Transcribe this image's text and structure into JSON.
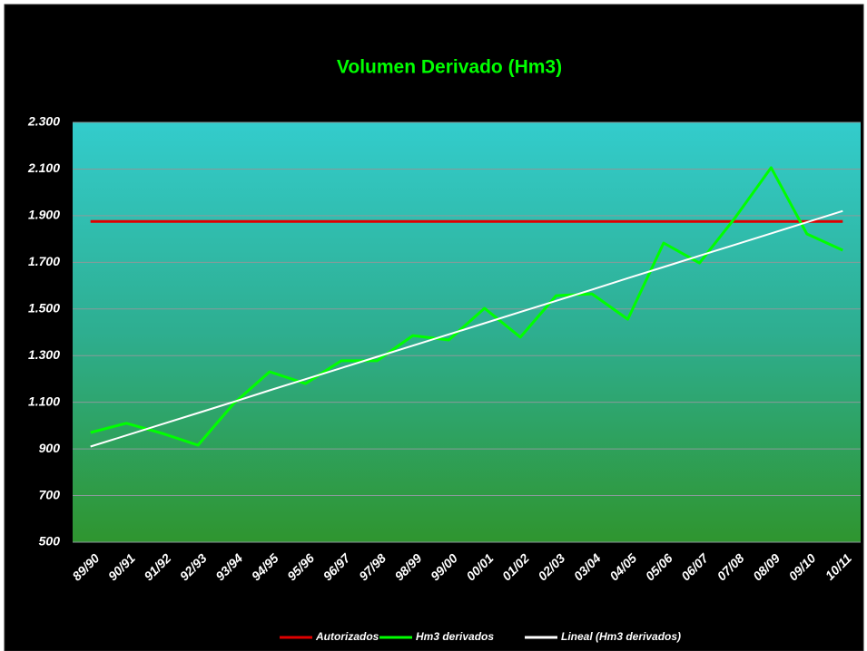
{
  "chart_data": {
    "type": "line",
    "title": "Volumen Derivado  (Hm3)",
    "categories": [
      "89/90",
      "90/91",
      "91/92",
      "92/93",
      "93/94",
      "94/95",
      "95/96",
      "96/97",
      "97/98",
      "98/99",
      "99/00",
      "00/01",
      "01/02",
      "02/03",
      "03/04",
      "04/05",
      "05/06",
      "06/07",
      "07/08",
      "08/09",
      "09/10",
      "10/11"
    ],
    "series": [
      {
        "name": "Autorizados",
        "color": "#e00000",
        "values": [
          1875,
          1875,
          1875,
          1875,
          1875,
          1875,
          1875,
          1875,
          1875,
          1875,
          1875,
          1875,
          1875,
          1875,
          1875,
          1875,
          1875,
          1875,
          1875,
          1875,
          1875,
          1875
        ]
      },
      {
        "name": "Hm3 derivados",
        "color": "#00ff00",
        "values": [
          970,
          1010,
          967,
          916,
          1095,
          1231,
          1180,
          1278,
          1278,
          1386,
          1367,
          1503,
          1379,
          1557,
          1565,
          1456,
          1783,
          1697,
          1892,
          2106,
          1822,
          1752
        ]
      },
      {
        "name": "Lineal (Hm3 derivados)",
        "color": "#ffffff",
        "values": [
          910,
          958,
          1006,
          1054,
          1102,
          1151,
          1199,
          1247,
          1295,
          1343,
          1391,
          1439,
          1487,
          1535,
          1583,
          1632,
          1680,
          1728,
          1776,
          1824,
          1872,
          1920
        ]
      }
    ],
    "ylim": [
      500,
      2300
    ],
    "yticks": [
      {
        "value": 500,
        "label": "500"
      },
      {
        "value": 700,
        "label": "700"
      },
      {
        "value": 900,
        "label": "900"
      },
      {
        "value": 1100,
        "label": "1.100"
      },
      {
        "value": 1300,
        "label": "1.300"
      },
      {
        "value": 1500,
        "label": "1.500"
      },
      {
        "value": 1700,
        "label": "1.700"
      },
      {
        "value": 1900,
        "label": "1.900"
      },
      {
        "value": 2100,
        "label": "2.100"
      },
      {
        "value": 2300,
        "label": "2.300"
      }
    ],
    "grid": true,
    "legend": "bottom"
  }
}
